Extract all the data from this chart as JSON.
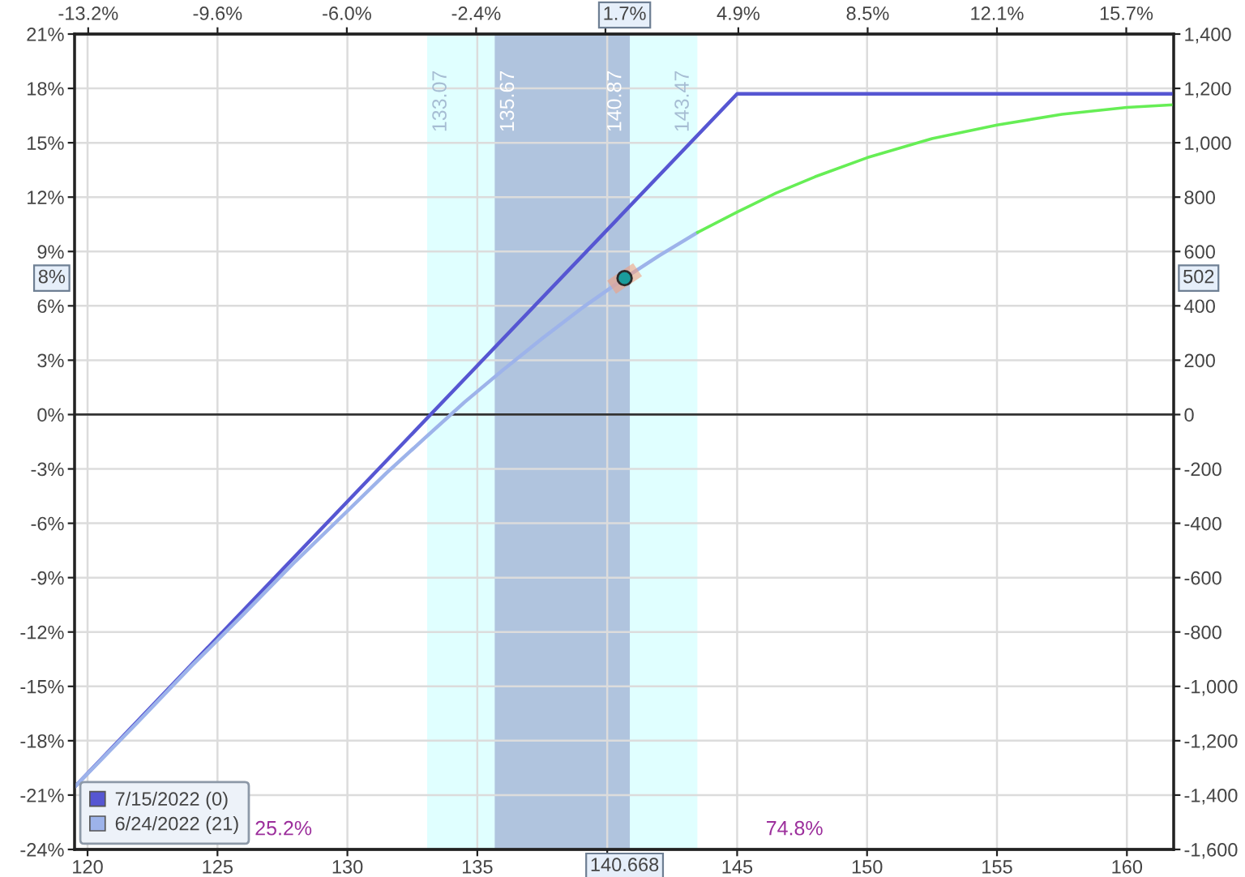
{
  "chart_data": {
    "type": "line",
    "xlim": [
      119.5,
      161.8
    ],
    "xticks": [
      120,
      125,
      130,
      135,
      {
        "value": 140,
        "label": null
      },
      145,
      150,
      155,
      160
    ],
    "x2lim": [
      -13.58,
      17.02
    ],
    "x2ticks": [
      {
        "value": -13.2,
        "label": "-13.2%"
      },
      {
        "value": -9.6,
        "label": "-9.6%"
      },
      {
        "value": -6.0,
        "label": "-6.0%"
      },
      {
        "value": -2.4,
        "label": "-2.4%"
      },
      {
        "value": 1.2,
        "label": null
      },
      {
        "value": 4.9,
        "label": "4.9%"
      },
      {
        "value": 8.5,
        "label": "8.5%"
      },
      {
        "value": 12.1,
        "label": "12.1%"
      },
      {
        "value": 15.7,
        "label": "15.7%"
      }
    ],
    "ylim": [
      -24,
      21
    ],
    "yticks": [
      {
        "value": 21,
        "label": "21%"
      },
      {
        "value": 18,
        "label": "18%"
      },
      {
        "value": 15,
        "label": "15%"
      },
      {
        "value": 12,
        "label": "12%"
      },
      {
        "value": 9,
        "label": "9%"
      },
      {
        "value": 6,
        "label": "6%"
      },
      {
        "value": 3,
        "label": "3%"
      },
      {
        "value": 0,
        "label": "0%"
      },
      {
        "value": -3,
        "label": "-3%"
      },
      {
        "value": -6,
        "label": "-6%"
      },
      {
        "value": -9,
        "label": "-9%"
      },
      {
        "value": -12,
        "label": "-12%"
      },
      {
        "value": -15,
        "label": "-15%"
      },
      {
        "value": -18,
        "label": "-18%"
      },
      {
        "value": -21,
        "label": "-21%"
      },
      {
        "value": -24,
        "label": "-24%"
      }
    ],
    "y2lim": [
      -1600,
      1400
    ],
    "y2ticks": [
      {
        "value": 1400,
        "label": "1,400"
      },
      {
        "value": 1200,
        "label": "1,200"
      },
      {
        "value": 1000,
        "label": "1,000"
      },
      800,
      600,
      400,
      200,
      0,
      -200,
      -400,
      -600,
      -800,
      {
        "value": -1000,
        "label": "-1,000"
      },
      {
        "value": -1200,
        "label": "-1,200"
      },
      {
        "value": -1400,
        "label": "-1,400"
      },
      {
        "value": -1600,
        "label": "-1,600"
      }
    ],
    "grid": true,
    "legend": "bottom left",
    "series": [
      {
        "name": "7/15/2022 (0)",
        "color": "#5656d2",
        "axis": "y2",
        "x": [
          119.5,
          133.2,
          145,
          161.8
        ],
        "values": [
          -1370,
          0,
          1180,
          1180
        ]
      },
      {
        "name": "6/24/2022 (21)",
        "color": "#9db3ea",
        "axis": "y2",
        "x": [
          119.5,
          122,
          124,
          126,
          128,
          130,
          131.5,
          133,
          134.5,
          136,
          137.5,
          139,
          140.668,
          142,
          143.47
        ],
        "values": [
          -1370,
          -1125,
          -925,
          -735,
          -540,
          -355,
          -215,
          -85,
          45,
          165,
          280,
          390,
          502,
          585,
          670
        ]
      },
      {
        "color": "#66ee55",
        "axis": "y2",
        "x": [
          143.47,
          145,
          146.5,
          148,
          150,
          152.5,
          155,
          157.5,
          160,
          161.8
        ],
        "values": [
          670,
          745,
          815,
          875,
          945,
          1015,
          1065,
          1105,
          1130,
          1140
        ]
      },
      {
        "type": "scatter",
        "color": "#1a9c9c",
        "axis": "y2",
        "marker": "circle",
        "x": [
          140.668
        ],
        "values": [
          502
        ]
      }
    ],
    "bands": [
      {
        "axis": "x",
        "from": 133.07,
        "to": 143.47,
        "color": "#e0ffff"
      },
      {
        "axis": "x",
        "from": 135.67,
        "to": 140.87,
        "color": "#b0c4de"
      }
    ],
    "ref_lines": [
      {
        "axis": "y",
        "value": 0,
        "color": "#333333"
      }
    ],
    "annotations": [
      {
        "text": "133.07",
        "x": 133.07,
        "y": 19
      },
      {
        "text": "135.67",
        "x": 135.67,
        "y": 19
      },
      {
        "text": "140.87",
        "x": 140.87,
        "y": 19
      },
      {
        "text": "143.47",
        "x": 143.47,
        "y": 19
      },
      {
        "text": "1.7%",
        "x": 140.668,
        "y": 21
      },
      {
        "text": "140.668",
        "x": 140.668,
        "y": -24
      },
      "8%",
      "502",
      "25.2%",
      "74.8%"
    ]
  }
}
